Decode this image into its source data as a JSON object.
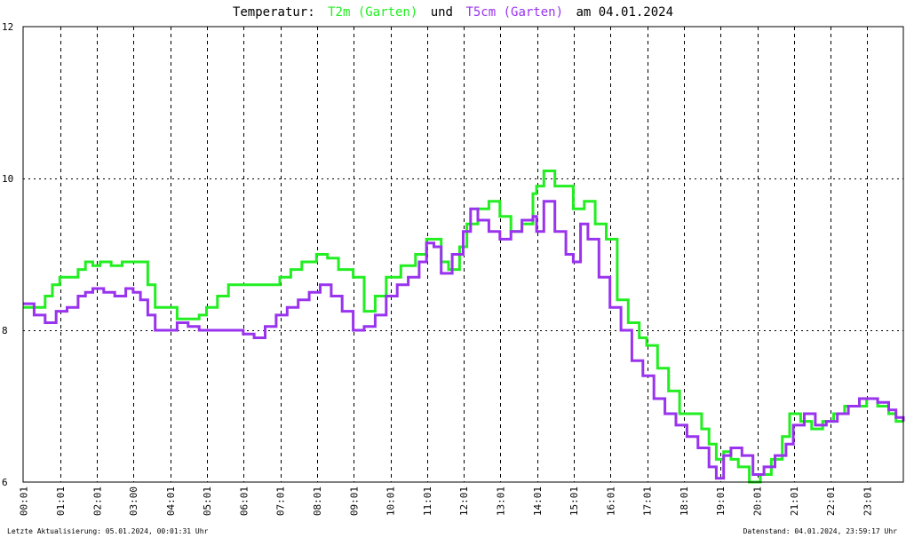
{
  "header": {
    "title_prefix": "Temperatur:",
    "series_a_label": "T2m (Garten)",
    "title_mid": "und",
    "series_b_label": "T5cm (Garten)",
    "title_suffix": "am 04.01.2024"
  },
  "footer": {
    "left": "Letzte Aktualisierung: 05.01.2024, 00:01:31 Uhr",
    "right": "Datenstand: 04.01.2024, 23:59:17 Uhr"
  },
  "colors": {
    "t2m": "#22ee22",
    "t5cm": "#9933ee",
    "grid": "#000000",
    "frame": "#000000"
  },
  "chart_data": {
    "type": "line",
    "title": "Temperatur: T2m (Garten) und T5cm (Garten) am 04.01.2024",
    "xlabel": "",
    "ylabel": "",
    "x_unit": "hours",
    "xlim": [
      0,
      24
    ],
    "ylim": [
      6,
      12
    ],
    "yticks": [
      6,
      8,
      10,
      12
    ],
    "xtick_labels": [
      "00:01",
      "01:01",
      "02:01",
      "03:00",
      "04:01",
      "05:01",
      "06:01",
      "07:01",
      "08:01",
      "09:01",
      "10:01",
      "11:01",
      "12:01",
      "13:01",
      "14:01",
      "15:01",
      "16:01",
      "17:01",
      "18:01",
      "19:01",
      "20:01",
      "21:01",
      "22:01",
      "23:01"
    ],
    "xtick_hours": [
      0.017,
      1.017,
      2.017,
      3.0,
      4.017,
      5.017,
      6.017,
      7.017,
      8.017,
      9.017,
      10.017,
      11.017,
      12.017,
      13.017,
      14.017,
      15.017,
      16.017,
      17.017,
      18.017,
      19.017,
      20.017,
      21.017,
      22.017,
      23.017
    ],
    "grid": true,
    "series": [
      {
        "name": "T2m (Garten)",
        "color": "#22ee22",
        "x": [
          0,
          0.3,
          0.6,
          0.8,
          1.0,
          1.5,
          1.7,
          1.9,
          2.1,
          2.4,
          2.7,
          3.0,
          3.2,
          3.4,
          3.6,
          3.9,
          4.2,
          4.5,
          4.8,
          5.0,
          5.3,
          5.6,
          5.9,
          6.3,
          6.7,
          7.0,
          7.3,
          7.6,
          8.0,
          8.3,
          8.6,
          9.0,
          9.3,
          9.6,
          9.9,
          10.3,
          10.7,
          11.0,
          11.2,
          11.4,
          11.6,
          11.9,
          12.1,
          12.4,
          12.7,
          13.0,
          13.3,
          13.6,
          13.9,
          14.0,
          14.2,
          14.5,
          14.8,
          15.0,
          15.3,
          15.6,
          15.9,
          16.2,
          16.5,
          16.8,
          17.0,
          17.3,
          17.6,
          17.9,
          18.2,
          18.5,
          18.7,
          18.9,
          19.1,
          19.3,
          19.5,
          19.8,
          20.1,
          20.4,
          20.7,
          20.9,
          21.2,
          21.5,
          21.8,
          22.1,
          22.4,
          22.7,
          23.0,
          23.3,
          23.6,
          23.8,
          24.0
        ],
        "y": [
          8.3,
          8.3,
          8.45,
          8.6,
          8.7,
          8.8,
          8.9,
          8.85,
          8.9,
          8.85,
          8.9,
          8.9,
          8.9,
          8.6,
          8.3,
          8.3,
          8.15,
          8.15,
          8.2,
          8.3,
          8.45,
          8.6,
          8.6,
          8.6,
          8.6,
          8.7,
          8.8,
          8.9,
          9.0,
          8.95,
          8.8,
          8.7,
          8.25,
          8.45,
          8.7,
          8.85,
          9.0,
          9.2,
          9.2,
          8.9,
          8.8,
          9.1,
          9.4,
          9.6,
          9.7,
          9.5,
          9.3,
          9.4,
          9.8,
          9.9,
          10.1,
          9.9,
          9.9,
          9.6,
          9.7,
          9.4,
          9.2,
          8.4,
          8.1,
          7.9,
          7.8,
          7.5,
          7.2,
          6.9,
          6.9,
          6.7,
          6.5,
          6.3,
          6.4,
          6.3,
          6.2,
          6.0,
          6.1,
          6.3,
          6.6,
          6.9,
          6.8,
          6.7,
          6.8,
          6.9,
          7.0,
          7.0,
          7.1,
          7.0,
          6.9,
          6.8,
          6.8
        ]
      },
      {
        "name": "T5cm (Garten)",
        "color": "#9933ee",
        "x": [
          0,
          0.3,
          0.6,
          0.9,
          1.2,
          1.5,
          1.7,
          1.9,
          2.2,
          2.5,
          2.8,
          3.0,
          3.2,
          3.4,
          3.6,
          3.9,
          4.2,
          4.5,
          4.8,
          5.1,
          5.4,
          5.7,
          6.0,
          6.3,
          6.6,
          6.9,
          7.2,
          7.5,
          7.8,
          8.1,
          8.4,
          8.7,
          9.0,
          9.3,
          9.6,
          9.9,
          10.2,
          10.5,
          10.8,
          11.0,
          11.2,
          11.4,
          11.7,
          12.0,
          12.2,
          12.4,
          12.7,
          13.0,
          13.3,
          13.6,
          13.9,
          14.0,
          14.2,
          14.5,
          14.8,
          15.0,
          15.2,
          15.4,
          15.7,
          16.0,
          16.3,
          16.6,
          16.9,
          17.2,
          17.5,
          17.8,
          18.1,
          18.4,
          18.7,
          18.9,
          19.1,
          19.3,
          19.6,
          19.9,
          20.2,
          20.5,
          20.8,
          21.0,
          21.3,
          21.6,
          21.9,
          22.2,
          22.5,
          22.8,
          23.0,
          23.3,
          23.6,
          23.8,
          24.0
        ],
        "y": [
          8.35,
          8.2,
          8.1,
          8.25,
          8.3,
          8.45,
          8.5,
          8.55,
          8.5,
          8.45,
          8.55,
          8.5,
          8.4,
          8.2,
          8.0,
          8.0,
          8.1,
          8.05,
          8.0,
          8.0,
          8.0,
          8.0,
          7.95,
          7.9,
          8.05,
          8.2,
          8.3,
          8.4,
          8.5,
          8.6,
          8.45,
          8.25,
          8.0,
          8.05,
          8.2,
          8.45,
          8.6,
          8.7,
          8.9,
          9.15,
          9.1,
          8.75,
          9.0,
          9.3,
          9.6,
          9.45,
          9.3,
          9.2,
          9.3,
          9.45,
          9.5,
          9.3,
          9.7,
          9.3,
          9.0,
          8.9,
          9.4,
          9.2,
          8.7,
          8.3,
          8.0,
          7.6,
          7.4,
          7.1,
          6.9,
          6.75,
          6.6,
          6.45,
          6.2,
          6.05,
          6.35,
          6.45,
          6.35,
          6.1,
          6.2,
          6.35,
          6.5,
          6.75,
          6.9,
          6.75,
          6.8,
          6.9,
          7.0,
          7.1,
          7.1,
          7.05,
          6.95,
          6.85,
          6.8
        ]
      }
    ]
  }
}
